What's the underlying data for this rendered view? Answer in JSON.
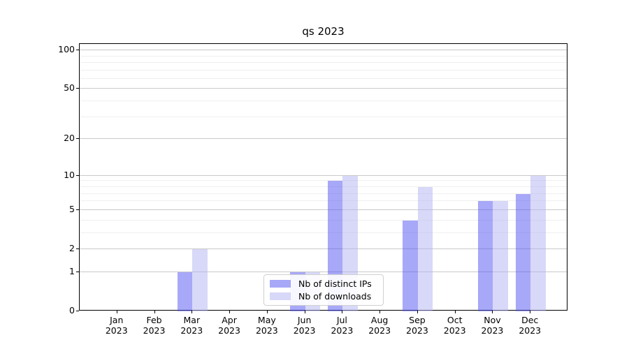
{
  "title": "qs 2023",
  "chart_data": {
    "type": "bar",
    "title": "qs 2023",
    "categories": [
      "Jan 2023",
      "Feb 2023",
      "Mar 2023",
      "Apr 2023",
      "May 2023",
      "Jun 2023",
      "Jul 2023",
      "Aug 2023",
      "Sep 2023",
      "Oct 2023",
      "Nov 2023",
      "Dec 2023"
    ],
    "series": [
      {
        "name": "Nb of distinct IPs",
        "color": "#5151f1",
        "alpha": 0.5,
        "values": [
          0,
          0,
          1,
          0,
          0,
          1,
          9,
          0,
          4,
          0,
          6,
          7
        ]
      },
      {
        "name": "Nb of downloads",
        "color": "#b1b1f1",
        "alpha": 0.5,
        "values": [
          0,
          0,
          2,
          0,
          0,
          1,
          10,
          0,
          8,
          0,
          6,
          10
        ]
      }
    ],
    "xlabel": "",
    "ylabel": "",
    "yscale": "log1p",
    "ylim": [
      0,
      112
    ],
    "y_major_ticks": [
      0,
      1,
      2,
      5,
      10,
      20,
      50,
      100
    ],
    "y_minor_ticks": [
      3,
      4,
      6,
      7,
      8,
      9,
      30,
      40,
      60,
      70,
      80,
      90
    ],
    "grid": true,
    "grid_color_major": "#c9c9c9",
    "grid_color_minor": "#efefef",
    "legend_position": "lower center"
  }
}
